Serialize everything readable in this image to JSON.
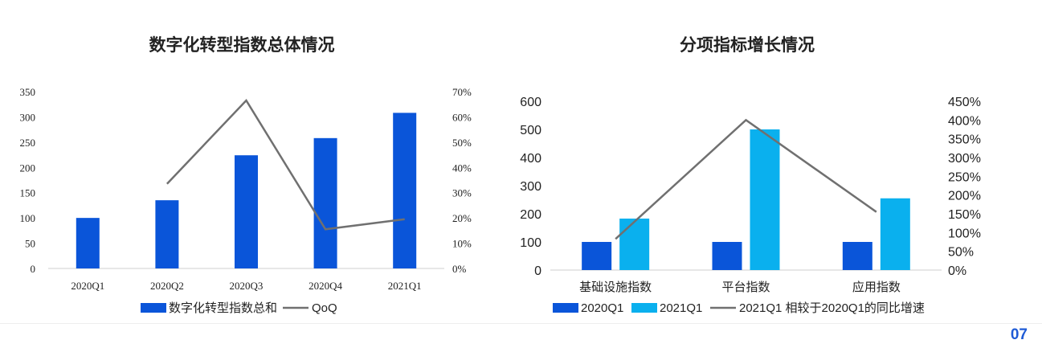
{
  "page_number": "07",
  "colors": {
    "blue_dark": "#0a55d9",
    "blue_light": "#0ab0ee",
    "line_gray": "#707070",
    "axis": "#cfcfcf",
    "text": "#222222"
  },
  "chart_data": [
    {
      "type": "bar",
      "title": "数字化转型指数总体情况",
      "categories": [
        "2020Q1",
        "2020Q2",
        "2020Q3",
        "2020Q4",
        "2021Q1"
      ],
      "series": [
        {
          "name": "数字化转型指数总和",
          "kind": "bar",
          "axis": "left",
          "values": [
            100,
            135,
            224,
            258,
            308
          ]
        },
        {
          "name": "QoQ",
          "kind": "line",
          "axis": "right",
          "values": [
            null,
            0.335,
            0.665,
            0.155,
            0.195
          ]
        }
      ],
      "ylim_left": [
        0,
        350
      ],
      "yticks_left": [
        "0",
        "50",
        "100",
        "150",
        "200",
        "250",
        "300",
        "350"
      ],
      "ylim_right": [
        0,
        0.7
      ],
      "yticks_right": [
        "0%",
        "10%",
        "20%",
        "30%",
        "40%",
        "50%",
        "60%",
        "70%"
      ],
      "legend_position": "bottom",
      "grid": false
    },
    {
      "type": "bar",
      "title": "分项指标增长情况",
      "categories": [
        "基础设施指数",
        "平台指数",
        "应用指数"
      ],
      "series": [
        {
          "name": "2020Q1",
          "kind": "bar",
          "axis": "left",
          "values": [
            100,
            100,
            100
          ]
        },
        {
          "name": "2021Q1",
          "kind": "bar",
          "axis": "left",
          "values": [
            183,
            500,
            255
          ]
        },
        {
          "name": "2021Q1 相较于2020Q1的同比增速",
          "kind": "line",
          "axis": "right",
          "values": [
            0.83,
            4.0,
            1.55
          ]
        }
      ],
      "ylim_left": [
        0,
        600
      ],
      "yticks_left": [
        "0",
        "100",
        "200",
        "300",
        "400",
        "500",
        "600"
      ],
      "ylim_right": [
        0,
        4.5
      ],
      "yticks_right": [
        "0%",
        "50%",
        "100%",
        "150%",
        "200%",
        "250%",
        "300%",
        "350%",
        "400%",
        "450%"
      ],
      "legend_position": "bottom",
      "grid": false
    }
  ]
}
